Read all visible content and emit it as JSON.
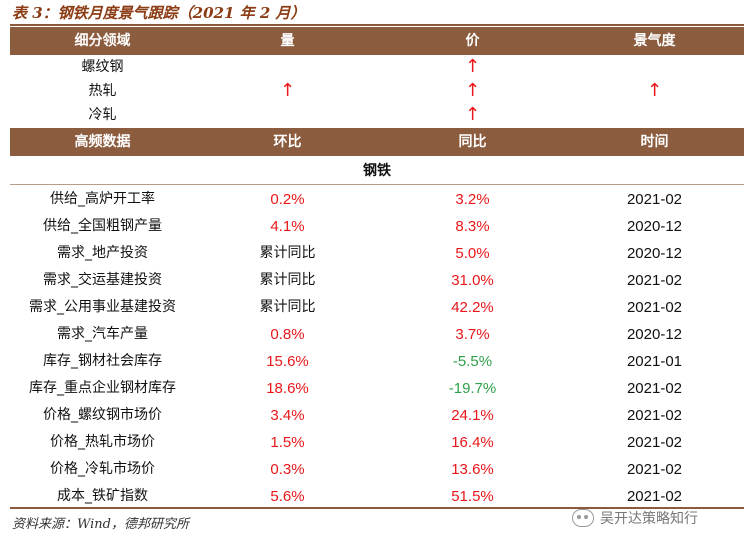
{
  "title": "表 3：钢铁月度景气跟踪（2021 年 2 月）",
  "top_header": {
    "col1": "细分领域",
    "col2": "量",
    "col3": "价",
    "col4": "景气度"
  },
  "sector_rows": [
    {
      "name": "螺纹钢",
      "volume": "",
      "price": "↑",
      "sentiment": ""
    },
    {
      "name": "热轧",
      "volume": "↑",
      "price": "↑",
      "sentiment": "↑"
    },
    {
      "name": "冷轧",
      "volume": "",
      "price": "↑",
      "sentiment": ""
    }
  ],
  "data_header": {
    "col1": "高频数据",
    "col2": "环比",
    "col3": "同比",
    "col4": "时间"
  },
  "section_label": "钢铁",
  "data_rows": [
    {
      "name": "供给_高炉开工率",
      "mom": "0.2%",
      "yoy": "3.2%",
      "date": "2021-02",
      "mom_color": "red",
      "yoy_color": "red"
    },
    {
      "name": "供给_全国粗钢产量",
      "mom": "4.1%",
      "yoy": "8.3%",
      "date": "2020-12",
      "mom_color": "red",
      "yoy_color": "red"
    },
    {
      "name": "需求_地产投资",
      "mom": "累计同比",
      "yoy": "5.0%",
      "date": "2020-12",
      "mom_color": "dark",
      "yoy_color": "red"
    },
    {
      "name": "需求_交运基建投资",
      "mom": "累计同比",
      "yoy": "31.0%",
      "date": "2021-02",
      "mom_color": "dark",
      "yoy_color": "red"
    },
    {
      "name": "需求_公用事业基建投资",
      "mom": "累计同比",
      "yoy": "42.2%",
      "date": "2021-02",
      "mom_color": "dark",
      "yoy_color": "red"
    },
    {
      "name": "需求_汽车产量",
      "mom": "0.8%",
      "yoy": "3.7%",
      "date": "2020-12",
      "mom_color": "red",
      "yoy_color": "red"
    },
    {
      "name": "库存_钢材社会库存",
      "mom": "15.6%",
      "yoy": "-5.5%",
      "date": "2021-01",
      "mom_color": "red",
      "yoy_color": "green"
    },
    {
      "name": "库存_重点企业钢材库存",
      "mom": "18.6%",
      "yoy": "-19.7%",
      "date": "2021-02",
      "mom_color": "red",
      "yoy_color": "green"
    },
    {
      "name": "价格_螺纹钢市场价",
      "mom": "3.4%",
      "yoy": "24.1%",
      "date": "2021-02",
      "mom_color": "red",
      "yoy_color": "red"
    },
    {
      "name": "价格_热轧市场价",
      "mom": "1.5%",
      "yoy": "16.4%",
      "date": "2021-02",
      "mom_color": "red",
      "yoy_color": "red"
    },
    {
      "name": "价格_冷轧市场价",
      "mom": "0.3%",
      "yoy": "13.6%",
      "date": "2021-02",
      "mom_color": "red",
      "yoy_color": "red"
    },
    {
      "name": "成本_铁矿指数",
      "mom": "5.6%",
      "yoy": "51.5%",
      "date": "2021-02",
      "mom_color": "red",
      "yoy_color": "red"
    }
  ],
  "source": "资料来源：Wind，德邦研究所",
  "watermark": "吴开达策略知行",
  "colors": {
    "header_bg": "#8c5c3f",
    "title": "#8b3c14",
    "up": "#e8171a",
    "down": "#2ea04a"
  }
}
